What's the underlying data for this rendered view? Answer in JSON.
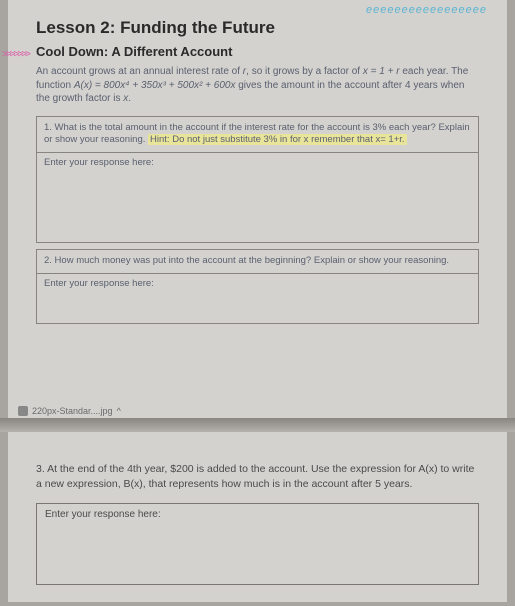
{
  "decor": "eeeeeeeeeeeeeeeee",
  "arrows": ">>>>>>>",
  "lesson_title": "Lesson 2: Funding the Future",
  "subtitle": "Cool Down: A Different Account",
  "intro_1": "An account grows at an annual interest rate of ",
  "intro_r": "r",
  "intro_2": ", so it grows by a factor of ",
  "intro_eq1": "x = 1 + r",
  "intro_3": " each year. The function ",
  "intro_eq2": "A(x) = 800x⁴ + 350x³ + 500x² + 600x",
  "intro_4": " gives the amount in the account after 4 years when the growth factor is ",
  "intro_x": "x",
  "intro_5": ".",
  "q1_text": "1. What is the total amount in the account if the interest rate for the account is 3% each year? Explain or show your reasoning. ",
  "q1_hint": "Hint: Do not just substitute 3% in for x remember that x= 1+r.",
  "q2_text": "2. How much money was put into the account at the beginning? Explain or show your reasoning.",
  "q3_text": "3. At the end of the 4th year, $200 is added to the account. Use the expression for A(x) to write a new expression, B(x), that represents how much is in the account after 5 years.",
  "resp_label": "Enter your response here:",
  "footer_tab": "220px-Standar....jpg",
  "caret": "^",
  "colors": {
    "page_bg": "#d4d2ce",
    "body_bg": "#a8a5a0",
    "text_main": "#2a2a2a",
    "text_body": "#5a6070",
    "border": "#888580",
    "hint_bg": "#e8e49a",
    "decor": "#5bb5d4",
    "arrows": "#d95ba8"
  }
}
